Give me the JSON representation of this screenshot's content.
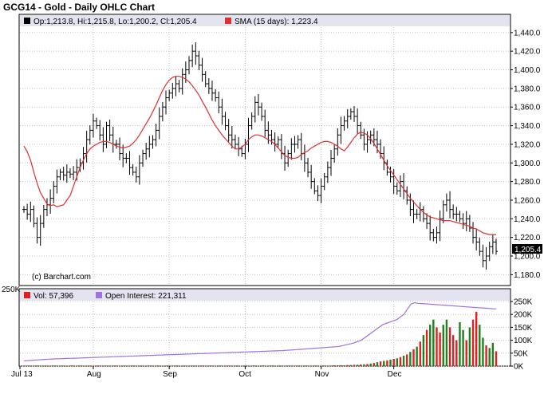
{
  "title": "GCG14 - Gold - Daily OHLC Chart",
  "watermark": "(c) Barchart.com",
  "price_legend": {
    "ohlc_text": "Op:1,213.8, Hi:1,215.8, Lo:1,200.2, Cl:1,205.4",
    "sma_text": "SMA (15 days): 1,223.4"
  },
  "last_price_label": "1,205.4",
  "volume_legend": {
    "vol_text": "Vol: 57,396",
    "oi_text": "Open Interest: 221,311"
  },
  "volume_axis_title": "250K",
  "colors": {
    "grid": "#c0c0c0",
    "frame": "#000000",
    "legend_bg": "#e4e4f0",
    "ohlc": "#000000",
    "sma": "#e03030",
    "vol_up": "#208020",
    "vol_down": "#e02020",
    "open_interest": "#a070e0",
    "vol_legend_square": "#e02020",
    "oi_legend_square": "#a070e0"
  },
  "chart_data": [
    {
      "type": "ohlc",
      "title": "GCG14 - Gold - Daily OHLC Chart",
      "x_ticks": [
        "Jul 13",
        "Aug",
        "Sep",
        "Oct",
        "Nov",
        "Dec"
      ],
      "y_ticks": [
        "1,180.0",
        "1,200.0",
        "1,220.0",
        "1,240.0",
        "1,260.0",
        "1,280.0",
        "1,300.0",
        "1,320.0",
        "1,340.0",
        "1,360.0",
        "1,380.0",
        "1,400.0",
        "1,420.0",
        "1,440.0"
      ],
      "ylim": [
        1170,
        1445
      ],
      "grid": true,
      "legend_position": "top-left",
      "series": [
        {
          "name": "Close",
          "values": [
            1250,
            1245,
            1250,
            1235,
            1220,
            1235,
            1250,
            1255,
            1262,
            1275,
            1285,
            1290,
            1287,
            1290,
            1288,
            1290,
            1295,
            1300,
            1310,
            1325,
            1335,
            1345,
            1340,
            1330,
            1320,
            1340,
            1330,
            1320,
            1320,
            1310,
            1305,
            1305,
            1295,
            1290,
            1285,
            1300,
            1310,
            1315,
            1320,
            1325,
            1335,
            1350,
            1360,
            1370,
            1375,
            1380,
            1385,
            1380,
            1395,
            1400,
            1410,
            1420,
            1415,
            1405,
            1395,
            1385,
            1380,
            1375,
            1370,
            1360,
            1350,
            1340,
            1330,
            1325,
            1320,
            1315,
            1310,
            1320,
            1340,
            1350,
            1365,
            1360,
            1350,
            1335,
            1330,
            1325,
            1320,
            1325,
            1310,
            1300,
            1310,
            1320,
            1320,
            1325,
            1310,
            1300,
            1290,
            1280,
            1270,
            1265,
            1275,
            1285,
            1295,
            1305,
            1315,
            1330,
            1340,
            1345,
            1350,
            1355,
            1350,
            1340,
            1330,
            1320,
            1325,
            1330,
            1325,
            1320,
            1310,
            1300,
            1290,
            1285,
            1275,
            1270,
            1280,
            1270,
            1260,
            1250,
            1245,
            1245,
            1250,
            1240,
            1235,
            1225,
            1220,
            1225,
            1240,
            1255,
            1260,
            1250,
            1245,
            1245,
            1240,
            1235,
            1240,
            1230,
            1220,
            1215,
            1205,
            1195,
            1200,
            1210,
            1215,
            1205
          ],
          "x_range": [
            0,
            143
          ]
        },
        {
          "name": "SMA (15 days)",
          "values": [
            1318,
            1312,
            1303,
            1290,
            1278,
            1268,
            1262,
            1256,
            1254,
            1255,
            1253,
            1254,
            1255,
            1260,
            1265,
            1275,
            1285,
            1295,
            1303,
            1310,
            1315,
            1318,
            1320,
            1322,
            1323,
            1323,
            1322,
            1320,
            1318,
            1317,
            1316,
            1317,
            1318,
            1321,
            1325,
            1330,
            1336,
            1342,
            1348,
            1355,
            1362,
            1370,
            1378,
            1384,
            1389,
            1392,
            1393,
            1393,
            1392,
            1390,
            1387,
            1383,
            1378,
            1373,
            1366,
            1360,
            1353,
            1346,
            1340,
            1335,
            1330,
            1326,
            1322,
            1318,
            1315,
            1315,
            1317,
            1320,
            1325,
            1328,
            1330,
            1330,
            1329,
            1327,
            1325,
            1323,
            1320,
            1316,
            1312,
            1308,
            1306,
            1305,
            1305,
            1306,
            1309,
            1311,
            1313,
            1316,
            1318,
            1320,
            1322,
            1323,
            1323,
            1322,
            1320,
            1318,
            1315,
            1313,
            1317,
            1322,
            1327,
            1331,
            1333,
            1332,
            1330,
            1326,
            1321,
            1315,
            1309,
            1303,
            1297,
            1292,
            1287,
            1282,
            1277,
            1272,
            1267,
            1262,
            1258,
            1254,
            1250,
            1247,
            1244,
            1242,
            1241,
            1240,
            1239,
            1238,
            1238,
            1238,
            1237,
            1236,
            1235,
            1234,
            1233,
            1232,
            1230,
            1229,
            1227,
            1225,
            1224,
            1223,
            1223,
            1223
          ],
          "x_range": [
            0,
            143
          ]
        }
      ],
      "last_value": 1205.4
    },
    {
      "type": "bar",
      "title": "",
      "x_ticks": [
        "Jul 13",
        "Aug",
        "Sep",
        "Oct",
        "Nov",
        "Dec"
      ],
      "y_ticks": [
        "0K",
        "50K",
        "100K",
        "150K",
        "200K",
        "250K"
      ],
      "ylim": [
        0,
        250000
      ],
      "series": [
        {
          "name": "Vol",
          "values": [
            2000,
            2000,
            2000,
            2000,
            2000,
            2000,
            2000,
            2000,
            2000,
            2000,
            2000,
            2000,
            2000,
            2000,
            2000,
            2000,
            2000,
            2000,
            2000,
            2000,
            2000,
            2000,
            2000,
            2000,
            2000,
            2000,
            2000,
            2000,
            2000,
            2000,
            2000,
            2000,
            2000,
            2000,
            2000,
            2000,
            2000,
            2000,
            2000,
            2000,
            2000,
            2000,
            2000,
            2000,
            2000,
            2000,
            2000,
            2000,
            2000,
            2000,
            2000,
            2000,
            2000,
            2000,
            2000,
            2000,
            2000,
            2000,
            2000,
            2000,
            2000,
            2000,
            2000,
            2000,
            2000,
            2000,
            2000,
            2000,
            2000,
            2000,
            2000,
            2000,
            2000,
            2000,
            2000,
            2000,
            2000,
            2000,
            2000,
            2000,
            2000,
            2000,
            2000,
            2000,
            2000,
            2000,
            2000,
            2000,
            2000,
            2000,
            2000,
            2000,
            2000,
            2000,
            3000,
            3000,
            3000,
            3000,
            4000,
            4000,
            5000,
            5000,
            6000,
            7000,
            8000,
            10000,
            12000,
            15000,
            18000,
            20000,
            22000,
            25000,
            28000,
            30000,
            35000,
            40000,
            45000,
            55000,
            65000,
            75000,
            95000,
            120000,
            140000,
            160000,
            180000,
            150000,
            130000,
            160000,
            180000,
            150000,
            120000,
            100000,
            170000,
            140000,
            100000,
            150000,
            180000,
            210000,
            160000,
            110000,
            80000,
            70000,
            90000,
            57396
          ],
          "up": [
            0,
            1,
            0,
            1,
            0,
            1,
            0,
            1,
            0,
            1,
            0,
            1,
            0,
            1,
            0,
            1,
            0,
            1,
            0,
            1,
            0,
            1,
            0,
            1,
            0,
            1,
            0,
            1,
            0,
            1,
            0,
            1,
            0,
            1,
            0,
            1,
            0,
            1,
            0,
            1,
            0,
            1,
            0,
            1,
            0,
            1,
            0,
            1,
            0,
            1,
            0,
            1,
            0,
            1,
            0,
            1,
            0,
            1,
            0,
            1,
            0,
            1,
            0,
            1,
            0,
            1,
            0,
            1,
            0,
            1,
            0,
            1,
            0,
            1,
            0,
            1,
            0,
            1,
            0,
            1,
            0,
            1,
            0,
            1,
            0,
            1,
            0,
            1,
            0,
            1,
            0,
            1,
            0,
            1,
            0,
            1,
            0,
            1,
            0,
            1,
            0,
            1,
            0,
            1,
            0,
            1,
            0,
            1,
            0,
            1,
            0,
            1,
            0,
            1,
            0,
            1,
            0,
            1,
            0,
            1,
            0,
            1,
            0,
            1,
            1,
            0,
            0,
            1,
            1,
            0,
            0,
            0,
            1,
            1,
            0,
            1,
            0,
            0,
            1,
            1,
            0,
            1,
            1,
            0
          ]
        },
        {
          "name": "Open Interest",
          "values": [
            20000,
            21000,
            22000,
            23000,
            24000,
            25000,
            26000,
            27000,
            27500,
            28000,
            28500,
            29000,
            29500,
            30000,
            30500,
            31000,
            31500,
            32000,
            32500,
            33000,
            33500,
            34000,
            34500,
            35000,
            35500,
            36000,
            36500,
            37000,
            37500,
            38000,
            38500,
            39000,
            39500,
            40000,
            40500,
            41000,
            41500,
            42000,
            42500,
            43000,
            43500,
            44000,
            44500,
            45000,
            45500,
            46000,
            46500,
            47000,
            47500,
            48000,
            48500,
            49000,
            49500,
            50000,
            50500,
            51000,
            51500,
            52000,
            52500,
            53000,
            53500,
            54000,
            54500,
            55000,
            55500,
            56000,
            56500,
            57000,
            57500,
            58000,
            58500,
            59000,
            59500,
            60000,
            61000,
            62000,
            63000,
            64000,
            65000,
            66000,
            67000,
            68000,
            69000,
            70000,
            71000,
            72000,
            73000,
            74000,
            75000,
            77000,
            80000,
            83000,
            86000,
            90000,
            95000,
            100000,
            110000,
            120000,
            130000,
            140000,
            150000,
            160000,
            165000,
            170000,
            175000,
            180000,
            190000,
            200000,
            220000,
            240000,
            245000,
            243000,
            242000,
            241000,
            240000,
            239000,
            238000,
            237000,
            236000,
            235000,
            234000,
            233000,
            232000,
            231000,
            230000,
            229000,
            228000,
            227000,
            226000,
            225000,
            224000,
            223000,
            222000,
            221311
          ],
          "x_range": [
            0,
            143
          ]
        }
      ]
    }
  ]
}
